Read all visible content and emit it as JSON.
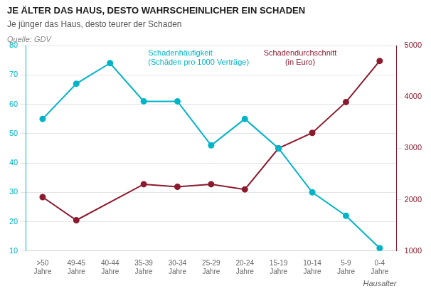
{
  "chart_data": {
    "type": "line",
    "title": "JE ÄLTER DAS HAUS, DESTO WAHRSCHEINLICHER EIN SCHADEN",
    "subtitle": "Je jünger das Haus, desto teurer der Schaden",
    "source": "Quelle: GDV",
    "xlabel": "Hausalter",
    "categories": [
      ">50\nJahre",
      "49-45\nJahre",
      "40-44\nJahre",
      "35-39\nJahre",
      "30-34\nJahre",
      "25-29\nJahre",
      "20-24\nJahre",
      "15-19\nJahre",
      "10-14\nJahre",
      "5-9\nJahre",
      "0-4\nJahre"
    ],
    "series": [
      {
        "color": "#00b4c8",
        "marker": "circle",
        "axis": "y",
        "values": [
          55,
          67,
          74,
          61,
          61,
          46,
          55,
          45,
          30,
          22,
          11
        ]
      },
      {
        "color": "#8b1a2e",
        "marker": "circle",
        "axis": "y2",
        "values": [
          2050,
          1600,
          null,
          2300,
          2250,
          2300,
          2200,
          3000,
          3300,
          3900,
          4700
        ]
      }
    ],
    "ylim": [
      10,
      80
    ],
    "yticks": [
      10,
      20,
      30,
      40,
      50,
      60,
      70,
      80
    ],
    "y2lim": [
      1000,
      5000
    ],
    "y2ticks": [
      1000,
      2000,
      3000,
      4000,
      5000
    ],
    "grid": true,
    "annotations": [
      {
        "text": [
          "Schadenhäufigkeit",
          "(Schäden pro 1000 Verträge)"
        ],
        "color": "#00b4c8",
        "axis": "y"
      },
      {
        "text": [
          "Schadendurchschnitt",
          "(in Euro)"
        ],
        "color": "#8b1a2e",
        "axis": "y2"
      }
    ]
  }
}
